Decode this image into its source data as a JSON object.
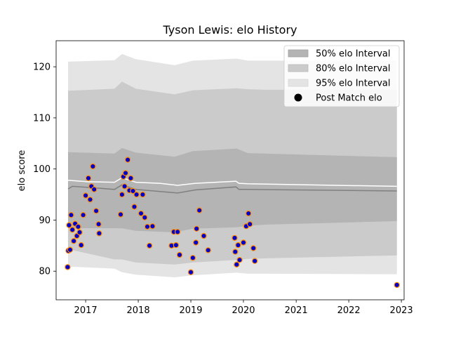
{
  "chart_data": {
    "type": "line",
    "title": "Tyson Lewis: elo History",
    "xlabel": "",
    "ylabel": "elo score",
    "xlim": [
      "2016-06-10",
      "2023-01-20"
    ],
    "ylim": [
      74.4,
      125.1
    ],
    "x_ticks": [
      "2017",
      "2018",
      "2019",
      "2020",
      "2021",
      "2022",
      "2023"
    ],
    "y_ticks": [
      80,
      90,
      100,
      110,
      120
    ],
    "grid": false,
    "legend_position": "upper right",
    "colors": {
      "band_50": "#b4b4b4",
      "band_80": "#cbcbcb",
      "band_95": "#e4e4e4",
      "mean_line": "#ffffff",
      "median_line": "#808080",
      "point_fill": "#0000cc",
      "point_edge": "#ff8c00",
      "legend_marker": "#000000"
    },
    "legend": [
      {
        "label": "50% elo Interval",
        "kind": "band_50"
      },
      {
        "label": "80% elo Interval",
        "kind": "band_80"
      },
      {
        "label": "95% elo Interval",
        "kind": "band_95"
      },
      {
        "label": "Post Match elo",
        "kind": "marker"
      }
    ],
    "bands": {
      "x": [
        "2016-09-01",
        "2017-07-20",
        "2017-09-10",
        "2017-12-15",
        "2018-09-10",
        "2019-01-15",
        "2019-11-15",
        "2020-02-01",
        "2020-06-01",
        "2022-12-01"
      ],
      "p95_upper": [
        121.0,
        121.3,
        122.5,
        121.5,
        120.3,
        121.2,
        121.6,
        121.2,
        121.2,
        121.2
      ],
      "p95_lower": [
        80.9,
        80.5,
        79.8,
        79.3,
        78.8,
        79.2,
        79.7,
        79.5,
        79.5,
        79.4
      ],
      "p80_upper": [
        115.3,
        115.7,
        117.1,
        115.7,
        114.6,
        115.4,
        115.8,
        115.6,
        115.5,
        115.5
      ],
      "p80_lower": [
        84.3,
        82.3,
        82.3,
        81.7,
        81.3,
        81.7,
        82.2,
        82.4,
        82.5,
        83.1
      ],
      "p50_upper": [
        103.3,
        103.0,
        104.1,
        103.2,
        102.4,
        103.5,
        104.0,
        103.1,
        103.0,
        102.3
      ],
      "p50_lower": [
        88.4,
        88.4,
        88.4,
        87.9,
        87.6,
        88.3,
        88.6,
        88.9,
        89.1,
        89.8
      ]
    },
    "mean_line": {
      "x": [
        "2016-09-01",
        "2017-01-15",
        "2017-07-20",
        "2017-09-10",
        "2017-12-15",
        "2018-06-01",
        "2018-10-01",
        "2019-02-01",
        "2019-11-10",
        "2019-12-01",
        "2020-02-01",
        "2022-12-01"
      ],
      "y": [
        97.8,
        97.5,
        97.4,
        98.3,
        97.4,
        97.2,
        96.8,
        97.2,
        97.6,
        97.2,
        97.1,
        96.6
      ]
    },
    "median_line": {
      "x": [
        "2016-09-01",
        "2016-10-01",
        "2017-01-15",
        "2017-07-20",
        "2017-09-10",
        "2017-12-15",
        "2018-06-01",
        "2018-10-01",
        "2019-02-01",
        "2019-11-10",
        "2019-12-01",
        "2020-02-01",
        "2022-12-01"
      ],
      "y": [
        96.1,
        96.6,
        96.4,
        96.0,
        96.9,
        96.0,
        95.6,
        95.3,
        95.9,
        96.5,
        96.0,
        96.0,
        95.7
      ]
    },
    "post_match": {
      "x": [
        "2016-08-29",
        "2016-09-03",
        "2016-09-08",
        "2016-09-15",
        "2016-09-22",
        "2016-10-01",
        "2016-10-10",
        "2016-10-20",
        "2016-11-01",
        "2016-11-10",
        "2016-11-20",
        "2016-12-01",
        "2016-12-15",
        "2017-01-01",
        "2017-01-20",
        "2017-02-01",
        "2017-02-10",
        "2017-02-20",
        "2017-03-01",
        "2017-03-15",
        "2017-04-01",
        "2017-04-05",
        "2017-09-01",
        "2017-09-10",
        "2017-09-20",
        "2017-09-28",
        "2017-10-05",
        "2017-10-20",
        "2017-11-01",
        "2017-11-10",
        "2017-11-25",
        "2017-12-05",
        "2017-12-20",
        "2018-01-20",
        "2018-02-01",
        "2018-02-15",
        "2018-03-05",
        "2018-03-20",
        "2018-04-10",
        "2018-08-20",
        "2018-09-05",
        "2018-09-20",
        "2018-10-01",
        "2018-10-15",
        "2019-01-01",
        "2019-01-15",
        "2019-02-05",
        "2019-02-10",
        "2019-03-01",
        "2019-04-01",
        "2019-05-01",
        "2019-11-01",
        "2019-11-05",
        "2019-11-15",
        "2019-11-25",
        "2019-12-05",
        "2020-01-01",
        "2020-01-20",
        "2020-02-05",
        "2020-02-15",
        "2020-03-10",
        "2020-03-20",
        "2022-12-01"
      ],
      "y": [
        80.8,
        84.0,
        89.0,
        84.2,
        91.0,
        88.1,
        85.9,
        89.3,
        86.9,
        88.7,
        87.6,
        85.1,
        91.0,
        94.8,
        98.2,
        94.0,
        96.6,
        100.5,
        96.0,
        91.8,
        89.2,
        87.4,
        91.1,
        95.0,
        98.5,
        96.6,
        99.2,
        101.8,
        95.8,
        98.2,
        95.7,
        92.6,
        95.0,
        91.3,
        95.0,
        90.5,
        88.7,
        85.0,
        88.8,
        85.0,
        87.7,
        85.1,
        87.7,
        83.2,
        79.8,
        82.6,
        85.6,
        88.3,
        91.9,
        86.9,
        84.1,
        86.5,
        83.8,
        81.3,
        85.1,
        82.2,
        85.6,
        88.8,
        91.3,
        89.2,
        84.5,
        82.0,
        77.3
      ]
    }
  }
}
